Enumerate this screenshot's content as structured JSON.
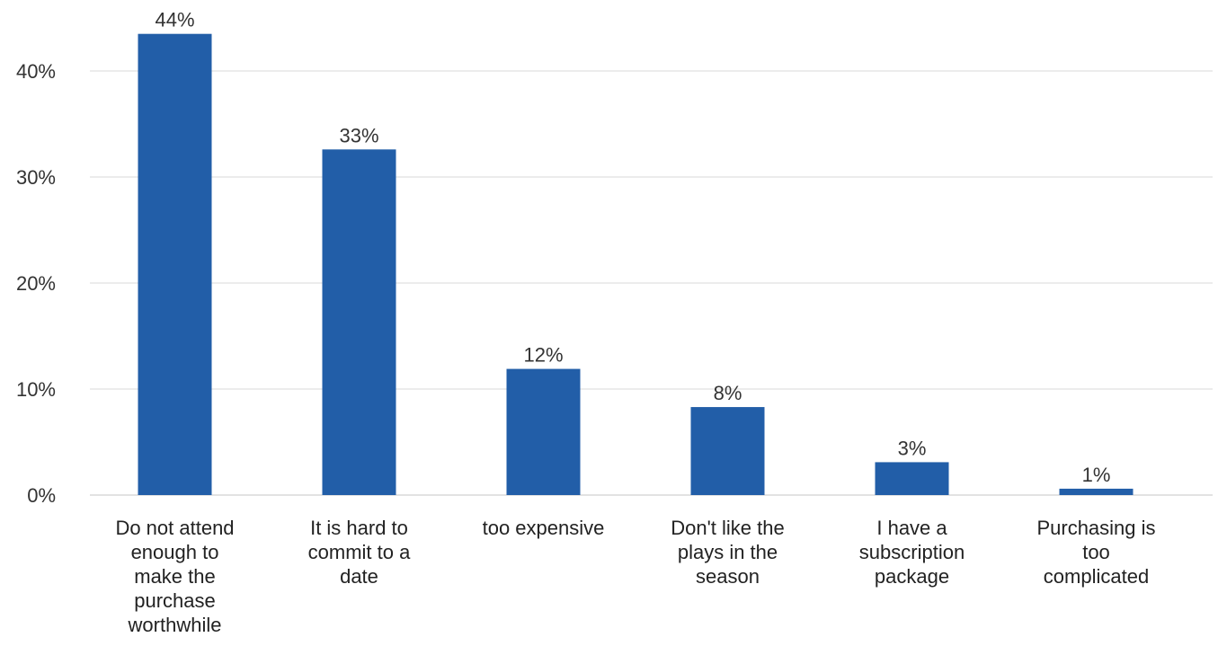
{
  "chart_data": {
    "type": "bar",
    "title": "",
    "xlabel": "",
    "ylabel": "",
    "categories": [
      [
        "Do not attend",
        "enough to",
        "make the",
        "purchase",
        "worthwhile"
      ],
      [
        "It is hard to",
        "commit to a",
        "date"
      ],
      [
        "too expensive"
      ],
      [
        "Don't like the",
        "plays in the",
        "season"
      ],
      [
        "I have a",
        "subscription",
        "package"
      ],
      [
        "Purchasing is",
        "too",
        "complicated"
      ]
    ],
    "values": [
      43.5,
      32.6,
      11.9,
      8.3,
      3.1,
      0.6
    ],
    "data_labels": [
      "44%",
      "33%",
      "12%",
      "8%",
      "3%",
      "1%"
    ],
    "ylim": [
      0,
      45
    ],
    "yticks": [
      0,
      10,
      20,
      30,
      40
    ],
    "ytick_labels": [
      "0%",
      "10%",
      "20%",
      "30%",
      "40%"
    ],
    "grid": true,
    "legend": "none",
    "colors": {
      "bar": "#225ea8",
      "grid": "#e6e6e6",
      "text": "#333333"
    }
  }
}
